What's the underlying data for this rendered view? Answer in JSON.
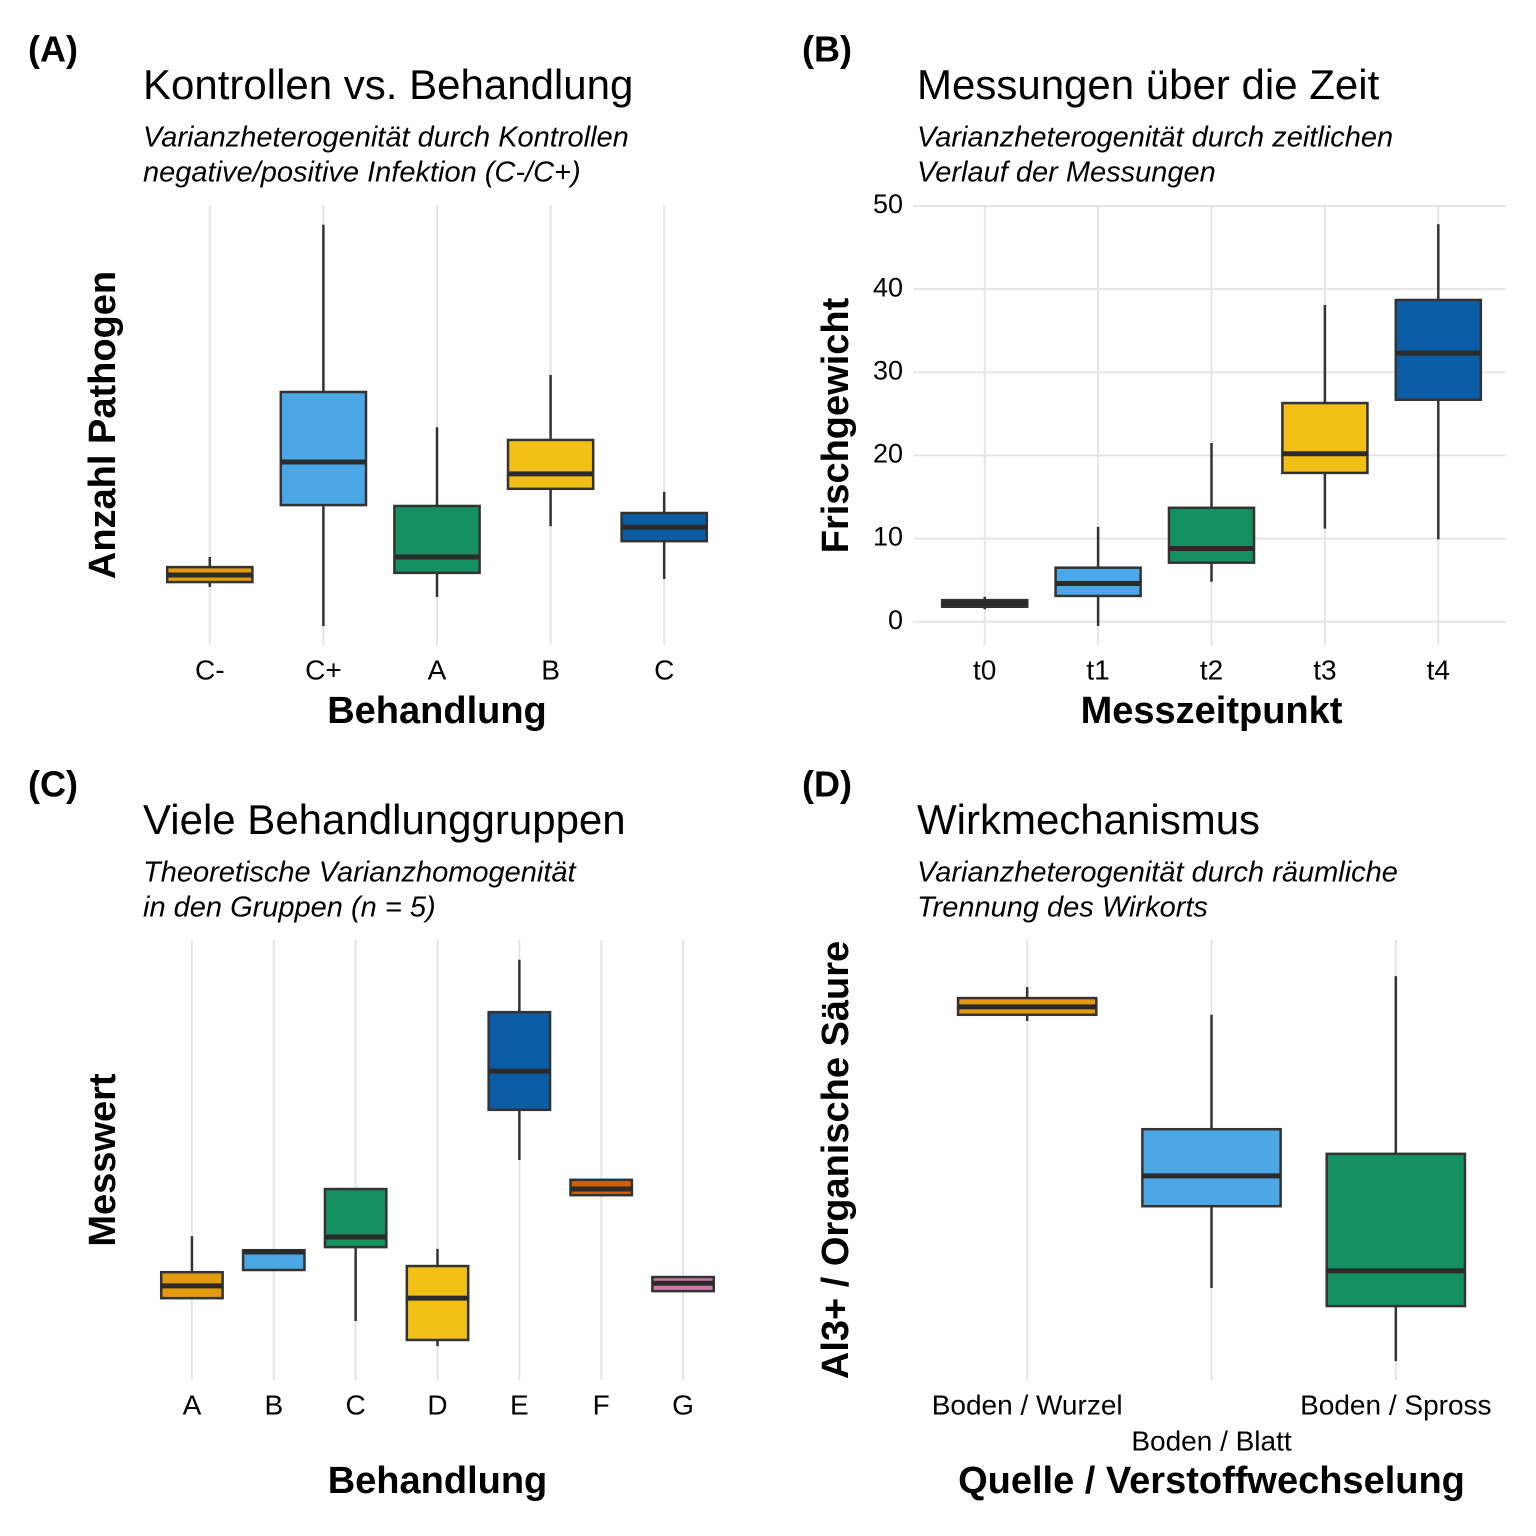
{
  "chart_data": [
    {
      "type": "boxplot",
      "panel_label": "(A)",
      "title": "Kontrollen vs. Behandlung",
      "subtitle": [
        "Varianzheterogenität durch Kontrollen",
        "negative/positive Infektion (C-/C+)"
      ],
      "x_label": "Behandlung",
      "y_label": "Anzahl Pathogen",
      "categories": [
        "C-",
        "C+",
        "A",
        "B",
        "C"
      ],
      "colors": [
        "#E49A0E",
        "#4BA7E5",
        "#159160",
        "#F2BF14",
        "#0B5EA5"
      ],
      "whisker_low": [
        13.2,
        4.3,
        10.9,
        27,
        15
      ],
      "q1": [
        14.3,
        31.8,
        16.4,
        35.5,
        23.6
      ],
      "median": [
        15.9,
        41.6,
        20,
        38.9,
        26.8
      ],
      "q3": [
        17.7,
        57.5,
        31.6,
        46.6,
        30
      ],
      "whisker_high": [
        20,
        95.5,
        49.5,
        61.4,
        34.8
      ],
      "ylim": [
        0,
        100
      ],
      "grid": true
    },
    {
      "type": "boxplot",
      "panel_label": "(B)",
      "title": "Messungen über die Zeit",
      "subtitle": [
        "Varianzheterogenität durch zeitlichen",
        "Verlauf der Messungen"
      ],
      "x_label": "Messzeitpunkt",
      "y_label": "Frischgewicht",
      "categories": [
        "t0",
        "t1",
        "t2",
        "t3",
        "t4"
      ],
      "colors": [
        "#E49A0E",
        "#4BA7E5",
        "#159160",
        "#F2BF14",
        "#0B5EA5"
      ],
      "whisker_low": [
        1.5,
        -0.5,
        4.8,
        11.2,
        9.9
      ],
      "q1": [
        1.8,
        3.1,
        7.1,
        17.9,
        26.7
      ],
      "median": [
        2.2,
        4.6,
        8.8,
        20.2,
        32.3
      ],
      "q3": [
        2.6,
        6.5,
        13.7,
        26.3,
        38.7
      ],
      "whisker_high": [
        3,
        11.4,
        21.5,
        38.1,
        47.8
      ],
      "ylim": [
        -2.8,
        50
      ],
      "yticks": [
        0,
        10,
        20,
        30,
        40,
        50
      ],
      "grid": true
    },
    {
      "type": "boxplot",
      "panel_label": "(C)",
      "title": "Viele Behandlunggruppen",
      "subtitle": [
        "Theoretische Varianzhomogenität",
        "in den Gruppen (n = 5)"
      ],
      "x_label": "Behandlung",
      "y_label": "Messwert",
      "categories": [
        "A",
        "B",
        "C",
        "D",
        "E",
        "F",
        "G"
      ],
      "colors": [
        "#E49A0E",
        "#4BA7E5",
        "#159160",
        "#F2BF14",
        "#0B5EA5",
        "#D55E00",
        "#CC79A7"
      ],
      "whisker_low": [
        18.6,
        25,
        13.4,
        7.7,
        50,
        42,
        20.2
      ],
      "q1": [
        18.6,
        25,
        30.2,
        9.1,
        61.4,
        42,
        20.2
      ],
      "median": [
        21.4,
        29.1,
        32.5,
        18.6,
        70.2,
        43.4,
        22
      ],
      "q3": [
        24.5,
        29.5,
        43.4,
        25.9,
        83.6,
        45.5,
        23.4
      ],
      "whisker_high": [
        32.7,
        29.5,
        43.4,
        29.8,
        95.5,
        45.5,
        23.4
      ],
      "ylim": [
        0,
        100
      ],
      "grid": true
    },
    {
      "type": "boxplot",
      "panel_label": "(D)",
      "title": "Wirkmechanismus",
      "subtitle": [
        "Varianzheterogenität durch räumliche",
        "Trennung des Wirkorts"
      ],
      "x_label": "Quelle / Verstoffwechselung",
      "y_label": "Al3+ / Organische Säure",
      "categories": [
        "Boden / Wurzel",
        "Boden / Blatt",
        "Boden / Spross"
      ],
      "colors": [
        "#E49A0E",
        "#4BA7E5",
        "#159160"
      ],
      "whisker_low": [
        81.6,
        20.9,
        4.3
      ],
      "q1": [
        83,
        39.5,
        16.8
      ],
      "median": [
        84.8,
        46.4,
        24.8
      ],
      "q3": [
        86.8,
        57,
        51.4
      ],
      "whisker_high": [
        89.3,
        83,
        91.8
      ],
      "ylim": [
        0,
        100
      ],
      "grid": true
    }
  ]
}
